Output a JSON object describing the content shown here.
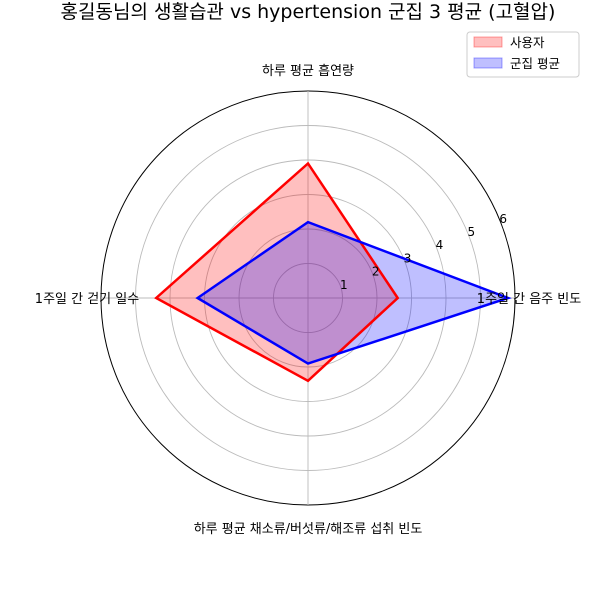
{
  "chart_data": {
    "type": "radar",
    "title": "홍길동님의 생활습관 vs hypertension 군집 3 평균 (고혈압)",
    "axes": [
      "1주일 간 음주 빈도",
      "하루 평균 흡연량",
      "1주일 간 걷기 일수",
      "하루 평균 채소류/버섯류/해조류 섭취 빈도"
    ],
    "rlim": [
      0,
      6
    ],
    "r_ticks": [
      "1",
      "2",
      "3",
      "4",
      "5",
      "6"
    ],
    "series": [
      {
        "name": "사용자",
        "values": [
          2.6,
          3.9,
          4.4,
          2.4
        ],
        "color": "#ff0000",
        "fill": "#ff0000"
      },
      {
        "name": "군집 평균",
        "values": [
          5.8,
          2.2,
          3.2,
          1.9
        ],
        "color": "#0000ff",
        "fill": "#0000ff"
      }
    ],
    "grid": true,
    "legend_position": "top-right"
  }
}
